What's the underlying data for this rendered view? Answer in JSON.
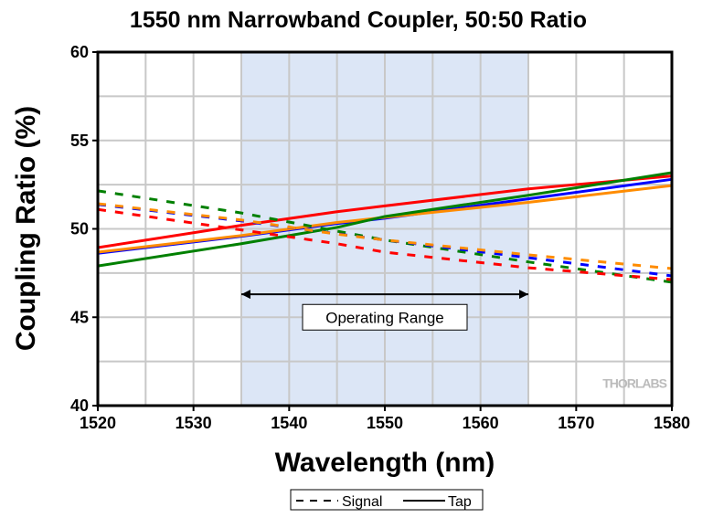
{
  "chart_data": {
    "type": "line",
    "title": "1550 nm Narrowband Coupler, 50:50 Ratio",
    "xlabel": "Wavelength (nm)",
    "ylabel": "Coupling Ratio (%)",
    "xlim": [
      1520,
      1580
    ],
    "ylim": [
      40,
      60
    ],
    "xticks": [
      1520,
      1530,
      1540,
      1550,
      1560,
      1570,
      1580
    ],
    "yticks": [
      40,
      45,
      50,
      55,
      60
    ],
    "grid": true,
    "shaded_region": {
      "x": [
        1535,
        1565
      ],
      "color": "#dce6f6"
    },
    "annotation": {
      "text": "Operating Range",
      "x": [
        1535,
        1565
      ],
      "arrow_y": 46.3,
      "label_y": 45.0
    },
    "watermark": "THORLABS",
    "legend": {
      "placement": "bottom",
      "entries": [
        {
          "label": "Signal",
          "style": "dashed"
        },
        {
          "label": "Tap",
          "style": "solid"
        }
      ]
    },
    "x": [
      1520,
      1535,
      1545,
      1550,
      1565,
      1580
    ],
    "series": [
      {
        "name": "Tap red",
        "color": "#ff0000",
        "style": "solid",
        "values": [
          48.94,
          50.2,
          50.97,
          51.3,
          52.26,
          52.99
        ]
      },
      {
        "name": "Tap blue",
        "color": "#0000ff",
        "style": "solid",
        "values": [
          48.62,
          49.58,
          50.3,
          50.6,
          51.7,
          52.8
        ]
      },
      {
        "name": "Tap orange",
        "color": "#ff8c00",
        "style": "solid",
        "values": [
          48.68,
          49.62,
          50.36,
          50.65,
          51.5,
          52.45
        ]
      },
      {
        "name": "Tap green",
        "color": "#008000",
        "style": "solid",
        "values": [
          47.9,
          49.16,
          50.08,
          50.7,
          51.9,
          53.18
        ]
      },
      {
        "name": "Signal green",
        "color": "#008000",
        "style": "dashed",
        "values": [
          52.15,
          50.9,
          49.87,
          49.37,
          48.13,
          46.98
        ]
      },
      {
        "name": "Signal blue",
        "color": "#0000ff",
        "style": "dashed",
        "values": [
          51.38,
          50.45,
          49.72,
          49.37,
          48.37,
          47.34
        ]
      },
      {
        "name": "Signal orange",
        "color": "#ff8c00",
        "style": "dashed",
        "values": [
          51.42,
          50.5,
          49.7,
          49.37,
          48.53,
          47.75
        ]
      },
      {
        "name": "Signal red",
        "color": "#ff0000",
        "style": "dashed",
        "values": [
          51.1,
          49.94,
          49.16,
          48.68,
          47.8,
          47.13
        ]
      }
    ]
  }
}
